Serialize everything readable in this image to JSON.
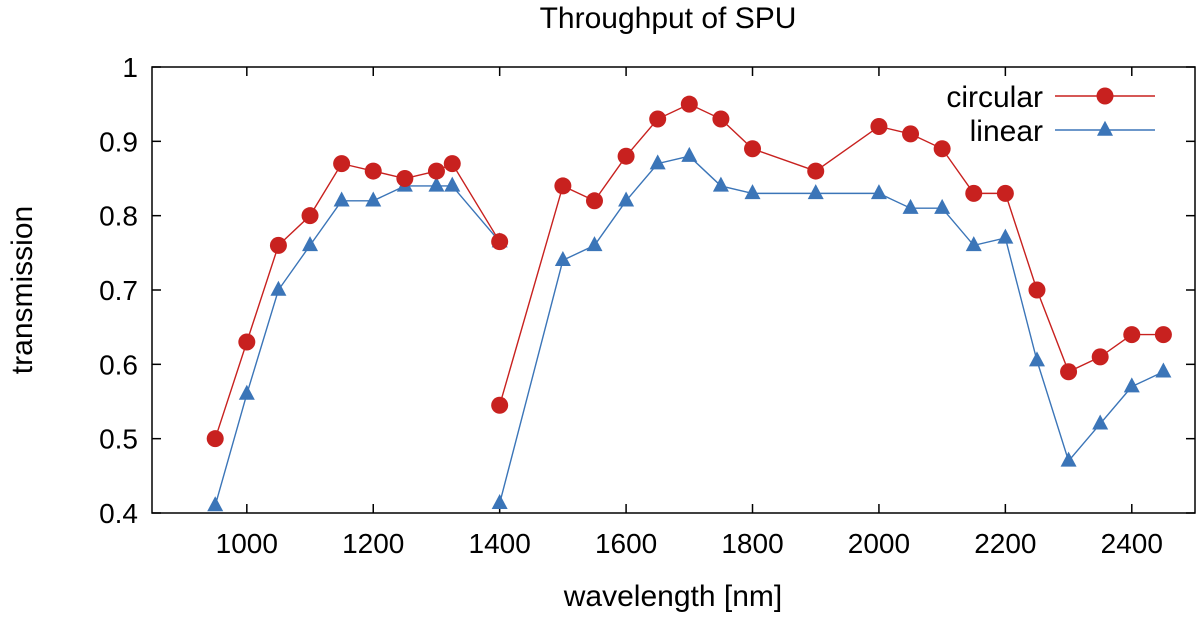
{
  "chart_data": {
    "type": "line",
    "title": "Throughput of SPU",
    "xlabel": "wavelength [nm]",
    "ylabel": "transmission",
    "xlim": [
      850,
      2500
    ],
    "ylim": [
      0.4,
      1.0
    ],
    "xticks": [
      "1000",
      "1200",
      "1400",
      "1600",
      "1800",
      "2000",
      "2200",
      "2400"
    ],
    "yticks": [
      "0.4",
      "0.5",
      "0.6",
      "0.7",
      "0.8",
      "0.9",
      "1"
    ],
    "grid": false,
    "legend_position": "top-right",
    "series": [
      {
        "name": "circular",
        "color": "#c8211f",
        "marker": "circle",
        "segments": [
          [
            [
              950,
              0.5
            ],
            [
              1000,
              0.63
            ],
            [
              1050,
              0.76
            ],
            [
              1100,
              0.8
            ],
            [
              1150,
              0.87
            ],
            [
              1200,
              0.86
            ],
            [
              1250,
              0.85
            ],
            [
              1300,
              0.86
            ],
            [
              1325,
              0.87
            ],
            [
              1400,
              0.765
            ]
          ],
          [
            [
              1400,
              0.545
            ],
            [
              1500,
              0.84
            ],
            [
              1550,
              0.82
            ],
            [
              1600,
              0.88
            ],
            [
              1650,
              0.93
            ],
            [
              1700,
              0.95
            ],
            [
              1750,
              0.93
            ],
            [
              1800,
              0.89
            ],
            [
              1900,
              0.86
            ],
            [
              2000,
              0.92
            ],
            [
              2050,
              0.91
            ],
            [
              2100,
              0.89
            ],
            [
              2150,
              0.83
            ],
            [
              2200,
              0.83
            ],
            [
              2250,
              0.7
            ],
            [
              2300,
              0.59
            ],
            [
              2350,
              0.61
            ],
            [
              2400,
              0.64
            ],
            [
              2450,
              0.64
            ]
          ]
        ]
      },
      {
        "name": "linear",
        "color": "#3b75b8",
        "marker": "triangle",
        "segments": [
          [
            [
              950,
              0.41
            ],
            [
              1000,
              0.56
            ],
            [
              1050,
              0.7
            ],
            [
              1100,
              0.76
            ],
            [
              1150,
              0.82
            ],
            [
              1200,
              0.82
            ],
            [
              1250,
              0.84
            ],
            [
              1300,
              0.84
            ],
            [
              1325,
              0.84
            ],
            [
              1400,
              0.765
            ]
          ],
          [
            [
              1400,
              0.413
            ],
            [
              1500,
              0.74
            ],
            [
              1550,
              0.76
            ],
            [
              1600,
              0.82
            ],
            [
              1650,
              0.87
            ],
            [
              1700,
              0.88
            ],
            [
              1750,
              0.84
            ],
            [
              1800,
              0.83
            ],
            [
              1900,
              0.83
            ],
            [
              2000,
              0.83
            ],
            [
              2050,
              0.81
            ],
            [
              2100,
              0.81
            ],
            [
              2150,
              0.76
            ],
            [
              2200,
              0.77
            ],
            [
              2250,
              0.605
            ],
            [
              2300,
              0.47
            ],
            [
              2350,
              0.52
            ],
            [
              2400,
              0.57
            ],
            [
              2450,
              0.59
            ]
          ]
        ]
      }
    ]
  }
}
